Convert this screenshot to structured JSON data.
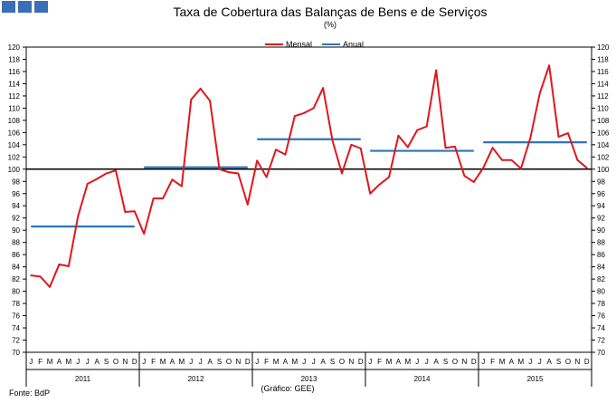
{
  "chart_data": {
    "type": "line",
    "title": "Taxa de Cobertura das Balanças de Bens e de Serviços",
    "subtitle": "(%)",
    "source": "Fonte: BdP",
    "credit": "(Gráfico: GEE)",
    "ylim": [
      70,
      120
    ],
    "yticks": [
      70,
      72,
      74,
      76,
      78,
      80,
      82,
      84,
      86,
      88,
      90,
      92,
      94,
      96,
      98,
      100,
      102,
      104,
      106,
      108,
      110,
      112,
      114,
      116,
      118,
      120
    ],
    "month_labels": [
      "J",
      "F",
      "M",
      "A",
      "M",
      "J",
      "J",
      "A",
      "S",
      "O",
      "N",
      "D"
    ],
    "years": [
      "2011",
      "2012",
      "2013",
      "2014",
      "2015"
    ],
    "reference_line": 100,
    "grid": false,
    "legend_position": "top-center",
    "series": [
      {
        "name": "Mensal",
        "color": "#e0161e",
        "values": [
          82.6,
          82.4,
          80.7,
          84.4,
          84.1,
          92.3,
          97.6,
          98.4,
          99.3,
          99.8,
          93.0,
          93.1,
          89.4,
          95.2,
          95.2,
          98.3,
          97.2,
          111.4,
          113.2,
          111.2,
          100.0,
          99.5,
          99.3,
          94.2,
          101.4,
          98.7,
          103.2,
          102.4,
          108.7,
          109.2,
          110.0,
          113.3,
          104.7,
          99.3,
          104.0,
          103.4,
          96.0,
          97.5,
          98.7,
          105.5,
          103.6,
          106.4,
          107.0,
          116.2,
          103.5,
          103.7,
          98.9,
          97.9,
          100.2,
          103.5,
          101.5,
          101.5,
          100.1,
          105.1,
          112.4,
          117.0,
          105.3,
          105.9,
          101.5,
          100.2
        ]
      },
      {
        "name": "Anual",
        "color": "#2e75b6",
        "values": [
          90.6,
          100.3,
          104.9,
          103.0,
          104.4
        ]
      }
    ]
  }
}
